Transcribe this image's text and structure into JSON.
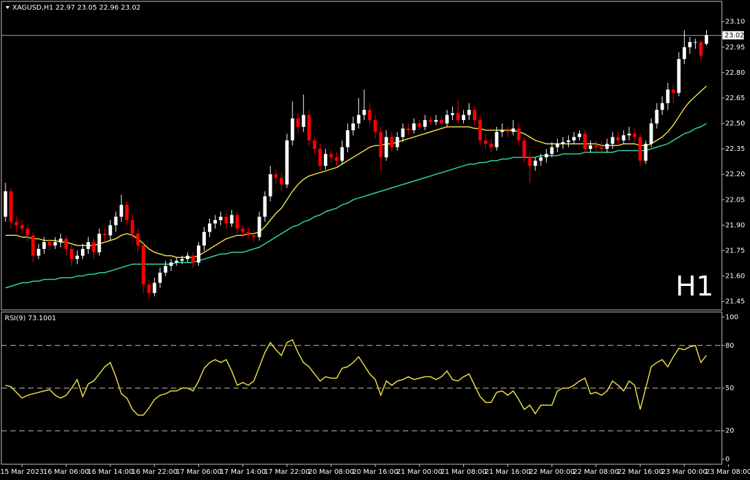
{
  "chart_data": {
    "type": "candlestick",
    "title": "XAGUSD,H1  22.97 23.05 22.96 23.02",
    "annotation": "H1",
    "annotation_color": "#e00000",
    "up_color": "#ffffff",
    "down_color": "#ff0000",
    "xlim": [
      -0.74,
      129.8
    ],
    "xticks": [
      {
        "value": 3,
        "label": "15 Mar 2023"
      },
      {
        "value": 11,
        "label": "16 Mar 06:00"
      },
      {
        "value": 19,
        "label": "16 Mar 14:00"
      },
      {
        "value": 27,
        "label": "16 Mar 22:00"
      },
      {
        "value": 35,
        "label": "17 Mar 06:00"
      },
      {
        "value": 43,
        "label": "17 Mar 14:00"
      },
      {
        "value": 51,
        "label": "17 Mar 22:00"
      },
      {
        "value": 59,
        "label": "20 Mar 08:00"
      },
      {
        "value": 67,
        "label": "20 Mar 16:00"
      },
      {
        "value": 75,
        "label": "21 Mar 00:00"
      },
      {
        "value": 83,
        "label": "21 Mar 08:00"
      },
      {
        "value": 91,
        "label": "21 Mar 16:00"
      },
      {
        "value": 99,
        "label": "22 Mar 00:00"
      },
      {
        "value": 107,
        "label": "22 Mar 08:00"
      },
      {
        "value": 115,
        "label": "22 Mar 16:00"
      },
      {
        "value": 123,
        "label": "23 Mar 00:00"
      },
      {
        "value": 131,
        "label": "23 Mar 08:00"
      }
    ],
    "ylim": [
      21.4,
      23.22
    ],
    "yticks": [
      {
        "value": 23.1,
        "label": "23.10"
      },
      22.95,
      {
        "value": 22.8,
        "label": "22.80"
      },
      22.65,
      {
        "value": 22.5,
        "label": "22.50"
      },
      22.35,
      {
        "value": 22.2,
        "label": "22.20"
      },
      22.05,
      {
        "value": 21.9,
        "label": "21.90"
      },
      21.75,
      {
        "value": 21.6,
        "label": "21.60"
      },
      21.45
    ],
    "current_price": 23.02,
    "open": [
      21.95,
      22.1,
      21.92,
      21.9,
      21.88,
      21.84,
      21.72,
      21.76,
      21.8,
      21.78,
      21.8,
      21.82,
      21.76,
      21.7,
      21.72,
      21.76,
      21.8,
      21.74,
      21.85,
      21.84,
      21.9,
      21.95,
      22.02,
      21.93,
      21.85,
      21.78,
      21.55,
      21.5,
      21.56,
      21.62,
      21.66,
      21.68,
      21.69,
      21.7,
      21.72,
      21.68,
      21.78,
      21.86,
      21.91,
      21.93,
      21.95,
      21.91,
      21.96,
      21.88,
      21.86,
      21.84,
      21.83,
      21.95,
      22.07,
      22.2,
      22.18,
      22.14,
      22.4,
      22.53,
      22.48,
      22.55,
      22.4,
      22.35,
      22.25,
      22.32,
      22.3,
      22.28,
      22.36,
      22.46,
      22.5,
      22.55,
      22.58,
      22.52,
      22.45,
      22.3,
      22.42,
      22.36,
      22.42,
      22.47,
      22.46,
      22.5,
      22.48,
      22.52,
      22.51,
      22.52,
      22.5,
      22.55,
      22.56,
      22.52,
      22.55,
      22.58,
      22.52,
      22.4,
      22.38,
      22.36,
      22.45,
      22.46,
      22.45,
      22.47,
      22.4,
      22.3,
      22.25,
      22.28,
      22.3,
      22.32,
      22.36,
      22.38,
      22.39,
      22.4,
      22.42,
      22.44,
      22.35,
      22.37,
      22.36,
      22.35,
      22.38,
      22.42,
      22.4,
      22.43,
      22.44,
      22.42,
      22.28,
      22.38,
      22.5,
      22.58,
      22.62,
      22.7,
      22.68,
      22.88,
      22.95,
      22.98,
      22.98,
      22.97
    ],
    "high": [
      22.15,
      22.12,
      21.95,
      21.93,
      21.9,
      21.86,
      21.79,
      21.83,
      21.82,
      21.83,
      21.85,
      21.84,
      21.78,
      21.75,
      21.79,
      21.83,
      21.82,
      21.88,
      21.88,
      21.93,
      21.98,
      22.08,
      22.04,
      21.96,
      21.88,
      21.8,
      21.58,
      21.59,
      21.65,
      21.69,
      21.7,
      21.71,
      21.72,
      21.74,
      21.74,
      21.8,
      21.89,
      21.94,
      21.96,
      21.98,
      21.97,
      21.99,
      21.98,
      21.9,
      21.89,
      21.87,
      21.98,
      22.1,
      22.25,
      22.23,
      22.21,
      22.44,
      22.63,
      22.56,
      22.67,
      22.58,
      22.42,
      22.38,
      22.35,
      22.34,
      22.33,
      22.4,
      22.5,
      22.54,
      22.65,
      22.7,
      22.62,
      22.55,
      22.48,
      22.46,
      22.45,
      22.45,
      22.5,
      22.5,
      22.53,
      22.52,
      22.55,
      22.54,
      22.55,
      22.54,
      22.58,
      22.6,
      22.64,
      22.58,
      22.62,
      22.6,
      22.55,
      22.44,
      22.41,
      22.48,
      22.5,
      22.48,
      22.52,
      22.5,
      22.42,
      22.33,
      22.3,
      22.32,
      22.35,
      22.39,
      22.41,
      22.42,
      22.43,
      22.45,
      22.46,
      22.46,
      22.4,
      22.4,
      22.39,
      22.41,
      22.45,
      22.45,
      22.46,
      22.48,
      22.47,
      22.44,
      22.4,
      22.53,
      22.62,
      22.66,
      22.74,
      22.73,
      22.92,
      23.05,
      23.01,
      23.0,
      22.99,
      23.05
    ],
    "low": [
      21.92,
      21.88,
      21.86,
      21.85,
      21.8,
      21.68,
      21.7,
      21.73,
      21.75,
      21.76,
      21.77,
      21.72,
      21.66,
      21.67,
      21.7,
      21.73,
      21.7,
      21.72,
      21.8,
      21.81,
      21.86,
      21.92,
      21.9,
      21.82,
      21.74,
      21.5,
      21.46,
      21.48,
      21.53,
      21.6,
      21.63,
      21.66,
      21.67,
      21.68,
      21.65,
      21.66,
      21.75,
      21.83,
      21.88,
      21.9,
      21.88,
      21.89,
      21.85,
      21.83,
      21.82,
      21.8,
      21.81,
      21.92,
      22.04,
      22.14,
      22.1,
      22.12,
      22.37,
      22.44,
      22.45,
      22.37,
      22.32,
      22.22,
      22.23,
      22.27,
      22.25,
      22.26,
      22.33,
      22.43,
      22.47,
      22.52,
      22.49,
      22.41,
      22.22,
      22.28,
      22.33,
      22.34,
      22.39,
      22.43,
      22.44,
      22.46,
      22.46,
      22.49,
      22.49,
      22.48,
      22.48,
      22.52,
      22.5,
      22.5,
      22.52,
      22.49,
      22.37,
      22.35,
      22.33,
      22.34,
      22.42,
      22.42,
      22.43,
      22.37,
      22.27,
      22.15,
      22.22,
      22.25,
      22.27,
      22.3,
      22.33,
      22.35,
      22.36,
      22.38,
      22.4,
      22.32,
      22.33,
      22.33,
      22.32,
      22.33,
      22.35,
      22.37,
      22.38,
      22.4,
      22.39,
      22.25,
      22.26,
      22.36,
      22.47,
      22.55,
      22.58,
      22.62,
      22.66,
      22.85,
      22.91,
      22.94,
      22.87,
      22.96
    ],
    "close": [
      22.1,
      21.92,
      21.9,
      21.88,
      21.84,
      21.72,
      21.76,
      21.8,
      21.78,
      21.8,
      21.82,
      21.76,
      21.7,
      21.72,
      21.76,
      21.8,
      21.74,
      21.85,
      21.84,
      21.9,
      21.95,
      22.02,
      21.93,
      21.85,
      21.78,
      21.55,
      21.5,
      21.56,
      21.62,
      21.66,
      21.68,
      21.69,
      21.7,
      21.72,
      21.68,
      21.78,
      21.86,
      21.91,
      21.93,
      21.95,
      21.91,
      21.96,
      21.88,
      21.86,
      21.84,
      21.83,
      21.95,
      22.07,
      22.2,
      22.18,
      22.14,
      22.4,
      22.53,
      22.48,
      22.55,
      22.4,
      22.35,
      22.25,
      22.32,
      22.3,
      22.28,
      22.36,
      22.46,
      22.5,
      22.55,
      22.58,
      22.52,
      22.45,
      22.3,
      22.42,
      22.36,
      22.42,
      22.47,
      22.46,
      22.5,
      22.48,
      22.52,
      22.51,
      22.52,
      22.5,
      22.55,
      22.56,
      22.52,
      22.55,
      22.58,
      22.52,
      22.4,
      22.38,
      22.36,
      22.45,
      22.46,
      22.45,
      22.47,
      22.4,
      22.3,
      22.25,
      22.28,
      22.3,
      22.32,
      22.36,
      22.38,
      22.39,
      22.4,
      22.42,
      22.44,
      22.35,
      22.37,
      22.36,
      22.35,
      22.38,
      22.42,
      22.4,
      22.43,
      22.44,
      22.42,
      22.28,
      22.38,
      22.5,
      22.58,
      22.62,
      22.7,
      22.68,
      22.88,
      22.95,
      22.98,
      22.98,
      22.9,
      23.02
    ],
    "series": [
      {
        "color": "#f0e040",
        "values": [
          21.84,
          21.84,
          21.84,
          21.83,
          21.83,
          21.82,
          21.82,
          21.81,
          21.81,
          21.81,
          21.8,
          21.8,
          21.79,
          21.78,
          21.78,
          21.78,
          21.78,
          21.79,
          21.8,
          21.81,
          21.82,
          21.84,
          21.85,
          21.84,
          21.82,
          21.79,
          21.76,
          21.74,
          21.73,
          21.72,
          21.72,
          21.71,
          21.71,
          21.71,
          21.71,
          21.72,
          21.74,
          21.76,
          21.78,
          21.8,
          21.82,
          21.83,
          21.84,
          21.84,
          21.85,
          21.85,
          21.86,
          21.89,
          21.93,
          21.97,
          22.0,
          22.05,
          22.1,
          22.14,
          22.17,
          22.19,
          22.2,
          22.21,
          22.22,
          22.23,
          22.24,
          22.26,
          22.28,
          22.3,
          22.32,
          22.34,
          22.36,
          22.37,
          22.37,
          22.38,
          22.38,
          22.39,
          22.4,
          22.41,
          22.42,
          22.43,
          22.44,
          22.45,
          22.46,
          22.47,
          22.48,
          22.48,
          22.48,
          22.48,
          22.48,
          22.47,
          22.47,
          22.46,
          22.46,
          22.46,
          22.46,
          22.46,
          22.46,
          22.45,
          22.44,
          22.42,
          22.4,
          22.39,
          22.38,
          22.38,
          22.38,
          22.38,
          22.38,
          22.38,
          22.38,
          22.38,
          22.38,
          22.38,
          22.37,
          22.37,
          22.37,
          22.37,
          22.38,
          22.38,
          22.38,
          22.37,
          22.37,
          22.38,
          22.4,
          22.42,
          22.45,
          22.49,
          22.54,
          22.59,
          22.63,
          22.66,
          22.69,
          22.72
        ]
      },
      {
        "color": "#30d8a0",
        "values": [
          21.53,
          21.54,
          21.55,
          21.56,
          21.56,
          21.57,
          21.57,
          21.58,
          21.58,
          21.58,
          21.59,
          21.59,
          21.59,
          21.6,
          21.6,
          21.61,
          21.61,
          21.62,
          21.62,
          21.63,
          21.64,
          21.65,
          21.66,
          21.67,
          21.67,
          21.67,
          21.67,
          21.67,
          21.67,
          21.67,
          21.67,
          21.68,
          21.68,
          21.68,
          21.68,
          21.69,
          21.7,
          21.71,
          21.72,
          21.73,
          21.73,
          21.74,
          21.74,
          21.74,
          21.75,
          21.76,
          21.77,
          21.79,
          21.81,
          21.83,
          21.85,
          21.87,
          21.89,
          21.9,
          21.92,
          21.93,
          21.95,
          21.96,
          21.98,
          21.99,
          22.0,
          22.02,
          22.03,
          22.05,
          22.06,
          22.07,
          22.08,
          22.09,
          22.1,
          22.11,
          22.12,
          22.13,
          22.14,
          22.15,
          22.16,
          22.17,
          22.18,
          22.19,
          22.2,
          22.21,
          22.22,
          22.23,
          22.24,
          22.25,
          22.26,
          22.26,
          22.27,
          22.27,
          22.28,
          22.28,
          22.29,
          22.29,
          22.3,
          22.3,
          22.3,
          22.3,
          22.3,
          22.31,
          22.31,
          22.31,
          22.31,
          22.32,
          22.32,
          22.32,
          22.32,
          22.33,
          22.33,
          22.33,
          22.33,
          22.33,
          22.33,
          22.34,
          22.34,
          22.34,
          22.34,
          22.34,
          22.34,
          22.35,
          22.36,
          22.37,
          22.38,
          22.4,
          22.42,
          22.44,
          22.45,
          22.47,
          22.48,
          22.5
        ]
      }
    ],
    "indicator": {
      "title": "RSI(9) 73.1001",
      "color": "#f0e040",
      "ylim": [
        -3.5,
        103.5
      ],
      "yticks": [
        100,
        80,
        50,
        20,
        0
      ],
      "levels": [
        80,
        50,
        20
      ],
      "values": [
        52,
        51,
        47,
        43,
        45,
        46,
        47,
        48,
        49,
        45,
        43,
        45,
        50,
        56,
        44,
        53,
        55,
        60,
        65,
        68,
        58,
        46,
        43,
        35,
        31,
        31,
        36,
        42,
        45,
        46,
        48,
        48,
        50,
        50,
        48,
        55,
        64,
        68,
        70,
        68,
        70,
        62,
        52,
        54,
        52,
        55,
        65,
        75,
        82,
        77,
        73,
        82,
        84,
        75,
        68,
        65,
        60,
        55,
        58,
        57,
        57,
        64,
        65,
        68,
        72,
        66,
        60,
        56,
        45,
        55,
        52,
        55,
        56,
        58,
        56,
        57,
        58,
        58,
        56,
        58,
        62,
        56,
        55,
        58,
        60,
        52,
        44,
        40,
        40,
        47,
        48,
        45,
        48,
        42,
        35,
        38,
        32,
        38,
        38,
        38,
        48,
        50,
        50,
        52,
        55,
        57,
        46,
        47,
        45,
        48,
        55,
        52,
        48,
        55,
        52,
        35,
        50,
        65,
        68,
        70,
        65,
        72,
        78,
        77,
        79,
        80,
        68,
        73.1001
      ]
    }
  }
}
